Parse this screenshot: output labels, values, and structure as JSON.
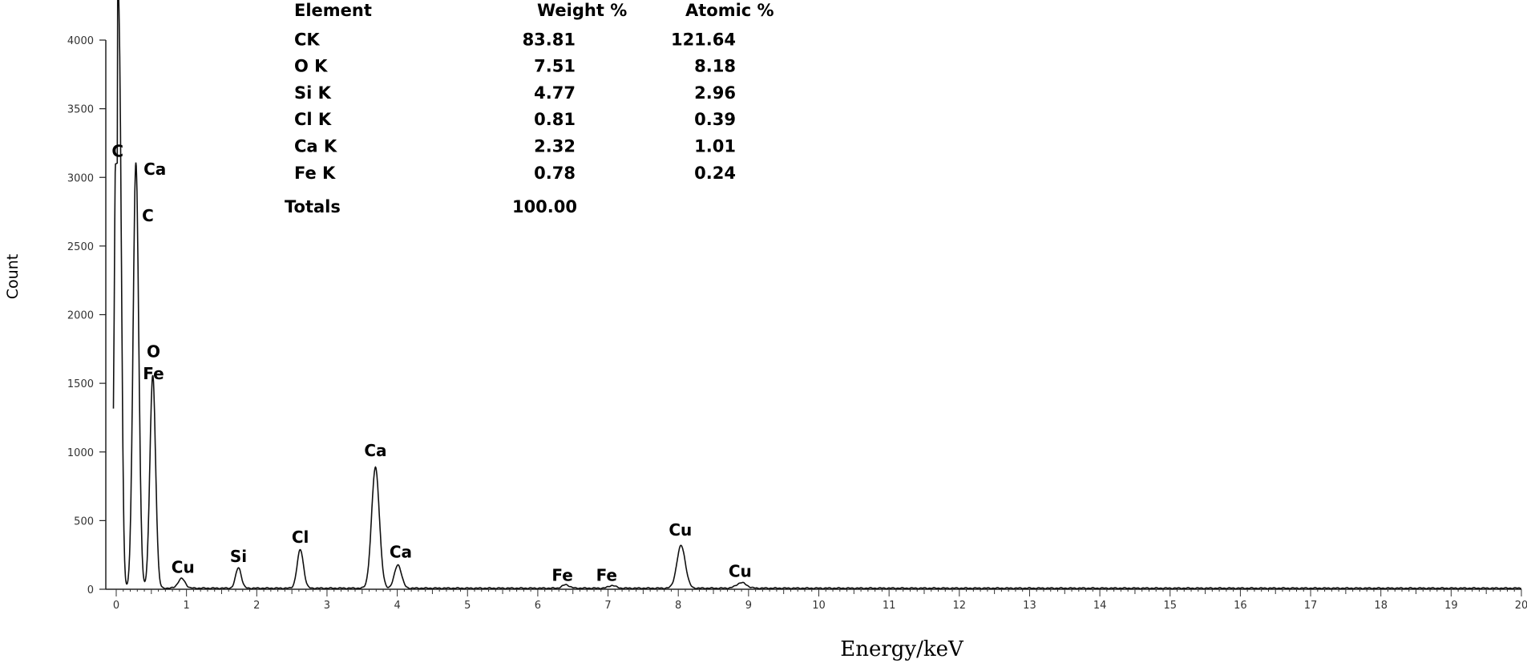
{
  "chart_data": {
    "type": "line",
    "xlabel": "Energy/keV",
    "ylabel": "Count",
    "xlim": [
      0,
      20
    ],
    "ylim": [
      0,
      4000
    ],
    "x_ticks": [
      "0",
      "1",
      "2",
      "3",
      "4",
      "5",
      "6",
      "7",
      "8",
      "9",
      "10",
      "11",
      "12",
      "13",
      "14",
      "15",
      "16",
      "17",
      "18",
      "19",
      "20"
    ],
    "y_ticks": [
      "0",
      "500",
      "1000",
      "1500",
      "2000",
      "2500",
      "3000",
      "3500",
      "4000"
    ],
    "grid": false,
    "series": [
      {
        "peaks": [
          {
            "x": 0.0,
            "y": 3100,
            "w": 0.03
          },
          {
            "x": 0.05,
            "y": 3100,
            "w": 0.03
          },
          {
            "x": 0.28,
            "y": 3100,
            "w": 0.04
          },
          {
            "x": 0.52,
            "y": 1550,
            "w": 0.04
          },
          {
            "x": 0.93,
            "y": 70,
            "w": 0.05
          },
          {
            "x": 1.74,
            "y": 150,
            "w": 0.04
          },
          {
            "x": 2.62,
            "y": 280,
            "w": 0.045
          },
          {
            "x": 3.69,
            "y": 880,
            "w": 0.055
          },
          {
            "x": 4.01,
            "y": 170,
            "w": 0.05
          },
          {
            "x": 6.4,
            "y": 25,
            "w": 0.05
          },
          {
            "x": 7.06,
            "y": 20,
            "w": 0.05
          },
          {
            "x": 8.04,
            "y": 310,
            "w": 0.06
          },
          {
            "x": 8.9,
            "y": 40,
            "w": 0.07
          }
        ],
        "baseline": 8
      }
    ],
    "annotations": [
      {
        "text": "C",
        "x": 0.02,
        "y": 3150
      },
      {
        "text": "Ca",
        "x": 0.55,
        "y": 3020
      },
      {
        "text": "C",
        "x": 0.45,
        "y": 2680
      },
      {
        "text": "O",
        "x": 0.53,
        "y": 1690
      },
      {
        "text": "Fe",
        "x": 0.53,
        "y": 1530
      },
      {
        "text": "Cu",
        "x": 0.95,
        "y": 120
      },
      {
        "text": "Si",
        "x": 1.74,
        "y": 200
      },
      {
        "text": "Cl",
        "x": 2.62,
        "y": 340
      },
      {
        "text": "Ca",
        "x": 3.69,
        "y": 970
      },
      {
        "text": "Ca",
        "x": 4.05,
        "y": 230
      },
      {
        "text": "Fe",
        "x": 6.35,
        "y": 60
      },
      {
        "text": "Fe",
        "x": 6.98,
        "y": 60
      },
      {
        "text": "Cu",
        "x": 8.03,
        "y": 390
      },
      {
        "text": "Cu",
        "x": 8.88,
        "y": 90
      }
    ],
    "table": {
      "headers": [
        "Element",
        "Weight %",
        "Atomic %"
      ],
      "rows": [
        [
          "CK",
          "83.81",
          "121.64"
        ],
        [
          "O K",
          "7.51",
          "8.18"
        ],
        [
          "Si K",
          "4.77",
          "2.96"
        ],
        [
          "Cl K",
          "0.81",
          "0.39"
        ],
        [
          "Ca K",
          "2.32",
          "1.01"
        ],
        [
          "Fe K",
          "0.78",
          "0.24"
        ]
      ],
      "totals_label": "Totals",
      "totals_value": "100.00"
    }
  }
}
